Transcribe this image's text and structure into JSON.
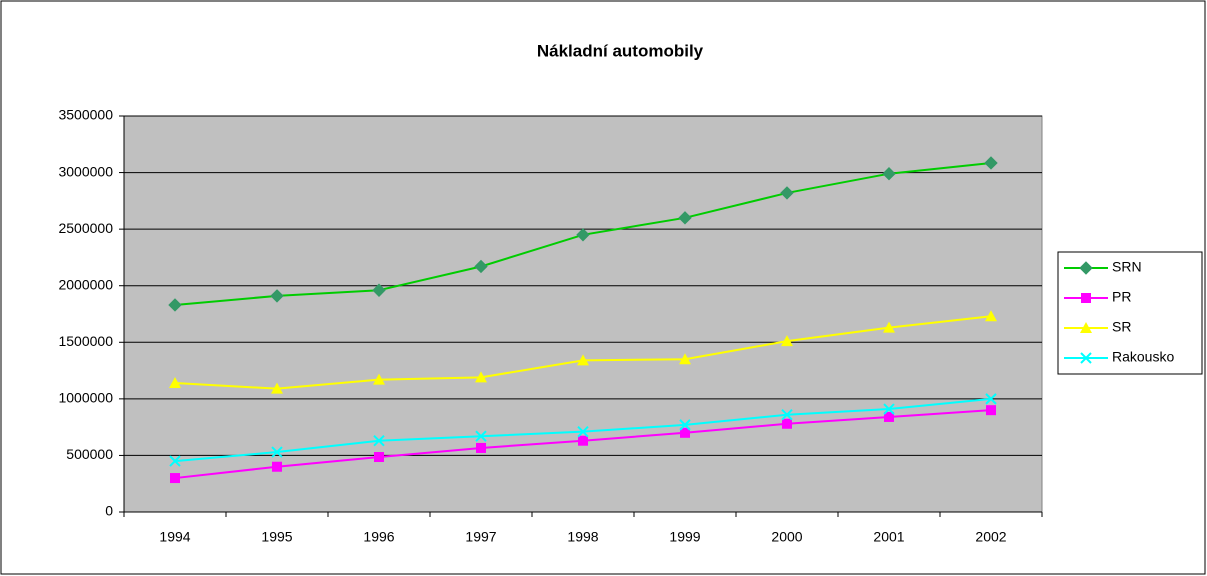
{
  "chart_data": {
    "type": "line",
    "title": "Nákladní automobily",
    "categories": [
      "1994",
      "1995",
      "1996",
      "1997",
      "1998",
      "1999",
      "2000",
      "2001",
      "2002"
    ],
    "series": [
      {
        "name": "SRN",
        "color": "#00cc00",
        "marker_color": "#339966",
        "marker": "diamond",
        "values": [
          1830000,
          1910000,
          1960000,
          2170000,
          2450000,
          2600000,
          2820000,
          2990000,
          3085000
        ]
      },
      {
        "name": "PR",
        "color": "#ff00ff",
        "marker_color": "#ff00ff",
        "marker": "square",
        "values": [
          300000,
          400000,
          486000,
          566000,
          630000,
          700000,
          780000,
          840000,
          900000
        ]
      },
      {
        "name": "SR",
        "color": "#ffff00",
        "marker_color": "#ffff00",
        "marker": "triangle",
        "values": [
          1140000,
          1090000,
          1170000,
          1190000,
          1340000,
          1350000,
          1510000,
          1630000,
          1730000
        ]
      },
      {
        "name": "Rakousko",
        "color": "#00ffff",
        "marker_color": "#00ffff",
        "marker": "x",
        "values": [
          450000,
          530000,
          630000,
          670000,
          710000,
          770000,
          860000,
          910000,
          1000000
        ]
      }
    ],
    "ylim": [
      0,
      3500000
    ],
    "yticks": [
      0,
      500000,
      1000000,
      1500000,
      2000000,
      2500000,
      3000000,
      3500000
    ],
    "grid": true,
    "plot_background": "#c0c0c0",
    "legend": "right"
  }
}
